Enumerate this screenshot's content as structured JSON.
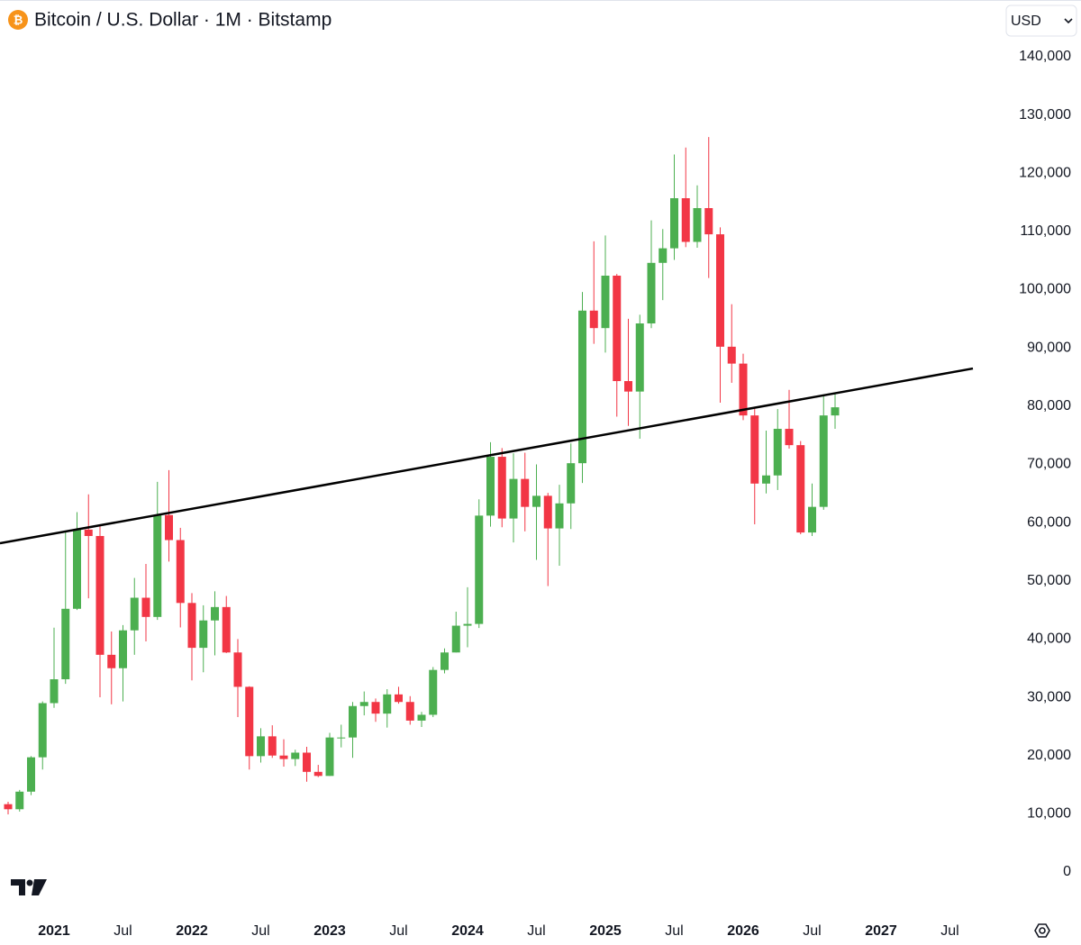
{
  "chart_data": {
    "type": "candlestick",
    "title": "Bitcoin / U.S. Dollar · 1M · Bitstamp",
    "currency": "USD",
    "up_color": "#4caf50",
    "down_color": "#f23645",
    "trendline_color": "#000000",
    "categories": [
      null,
      null,
      null,
      null,
      "2021",
      null,
      null,
      null,
      null,
      null,
      "Jul",
      null,
      null,
      null,
      null,
      null,
      "2022",
      null,
      null,
      null,
      null,
      null,
      "Jul",
      null,
      null,
      null,
      null,
      null,
      "2023",
      null,
      null,
      null,
      null,
      null,
      "Jul",
      null,
      null,
      null,
      null,
      null,
      "2024",
      null,
      null,
      null,
      null,
      null,
      "Jul",
      null,
      null,
      null,
      null,
      null,
      "2025",
      null,
      null,
      null,
      null,
      null,
      "Jul",
      null,
      null,
      null,
      null,
      null,
      "2026",
      null,
      null,
      null,
      null,
      null,
      "Jul",
      null,
      null,
      null,
      null,
      null,
      "2027",
      null,
      null,
      null,
      null,
      null,
      "Jul"
    ],
    "open": [
      11650,
      10780,
      13800,
      19700,
      29000,
      33100,
      45200,
      58800,
      57700,
      37300,
      35000,
      41500,
      47100,
      43800,
      61300,
      57000,
      46200,
      38500,
      43200,
      45500,
      37700,
      31800,
      19900,
      23300,
      20000,
      19400,
      20500,
      17200,
      16500,
      23100,
      23100,
      28500,
      29200,
      27200,
      30500,
      29200,
      26000,
      27000,
      34700,
      37700,
      42300,
      42600,
      61200,
      71300,
      60700,
      67500,
      62700,
      64600,
      59000,
      63300,
      70200,
      96400,
      93400,
      102400,
      84300,
      82500,
      94200,
      104600,
      107100,
      115700,
      108200,
      114000,
      109500,
      90200,
      87300,
      78400,
      66700,
      68100,
      76100,
      73300,
      58300,
      62700,
      78400,
      null,
      null,
      null,
      null,
      null,
      null,
      null,
      null,
      null,
      null
    ],
    "high": [
      12070,
      14100,
      19900,
      29300,
      41950,
      58350,
      61800,
      64850,
      59600,
      41300,
      42400,
      50500,
      52900,
      67000,
      69000,
      59100,
      47900,
      45800,
      48200,
      47400,
      40000,
      31900,
      24700,
      25200,
      22800,
      21000,
      21500,
      18400,
      23900,
      25300,
      29200,
      31000,
      29800,
      31400,
      31800,
      30200,
      27500,
      35200,
      38400,
      44700,
      48900,
      64000,
      73800,
      72800,
      71900,
      72000,
      70000,
      65100,
      66500,
      73600,
      99600,
      108300,
      109300,
      102700,
      95000,
      95700,
      111900,
      110400,
      123200,
      124400,
      117900,
      126200,
      110700,
      97500,
      89000,
      79500,
      75800,
      79500,
      82800,
      74000,
      66700,
      81700,
      82100,
      null,
      null,
      null,
      null,
      null,
      null,
      null,
      null,
      null,
      null
    ],
    "low": [
      9900,
      10380,
      13200,
      17600,
      28200,
      32300,
      45000,
      47000,
      30000,
      28800,
      29300,
      37300,
      39600,
      43300,
      53300,
      42000,
      32900,
      34300,
      37200,
      37600,
      26600,
      17600,
      18800,
      19600,
      18100,
      18200,
      15500,
      16300,
      16500,
      21400,
      19600,
      26900,
      25800,
      24800,
      28900,
      25300,
      24900,
      26600,
      34100,
      37700,
      38600,
      41900,
      59300,
      59200,
      56600,
      58500,
      53600,
      49100,
      52600,
      58900,
      66800,
      90700,
      89200,
      78200,
      76600,
      74400,
      93400,
      98200,
      105100,
      107300,
      107200,
      102000,
      80600,
      84000,
      77600,
      59700,
      65000,
      65600,
      72700,
      58000,
      57700,
      62200,
      76100,
      null,
      null,
      null,
      null,
      null,
      null,
      null,
      null,
      null,
      null
    ],
    "close": [
      10780,
      13800,
      19700,
      29000,
      33100,
      45200,
      58800,
      57700,
      37300,
      35000,
      41500,
      47100,
      43800,
      61300,
      57000,
      46200,
      38500,
      43200,
      45500,
      37700,
      31800,
      19900,
      23300,
      20000,
      19400,
      20500,
      17200,
      16500,
      23100,
      23100,
      28500,
      29200,
      27200,
      30500,
      29200,
      26000,
      27000,
      34700,
      37700,
      42300,
      42600,
      61200,
      71300,
      60700,
      67500,
      62700,
      64600,
      59000,
      63300,
      70200,
      96400,
      93400,
      102400,
      84300,
      82500,
      94200,
      104600,
      107100,
      115700,
      108200,
      114000,
      109500,
      90200,
      87300,
      78400,
      66700,
      68100,
      76100,
      73300,
      58300,
      62700,
      78400,
      79800,
      null,
      null,
      null,
      null,
      null,
      null,
      null,
      null,
      null,
      null
    ],
    "trendline": {
      "values": [
        56700,
        85750
      ]
    },
    "ylim": [
      -1000,
      141000
    ],
    "yticks": [
      0,
      {
        "value": 10000,
        "label": "10,000"
      },
      {
        "value": 20000,
        "label": "20,000"
      },
      {
        "value": 30000,
        "label": "30,000"
      },
      {
        "value": 40000,
        "label": "40,000"
      },
      {
        "value": 50000,
        "label": "50,000"
      },
      {
        "value": 60000,
        "label": "60,000"
      },
      {
        "value": 70000,
        "label": "70,000"
      },
      {
        "value": 80000,
        "label": "80,000"
      },
      {
        "value": 90000,
        "label": "90,000"
      },
      {
        "value": 100000,
        "label": "100,000"
      },
      {
        "value": 110000,
        "label": "110,000"
      },
      {
        "value": 120000,
        "label": "120,000"
      },
      {
        "value": 130000,
        "label": "130,000"
      },
      {
        "value": 140000,
        "label": "140,000"
      }
    ]
  }
}
